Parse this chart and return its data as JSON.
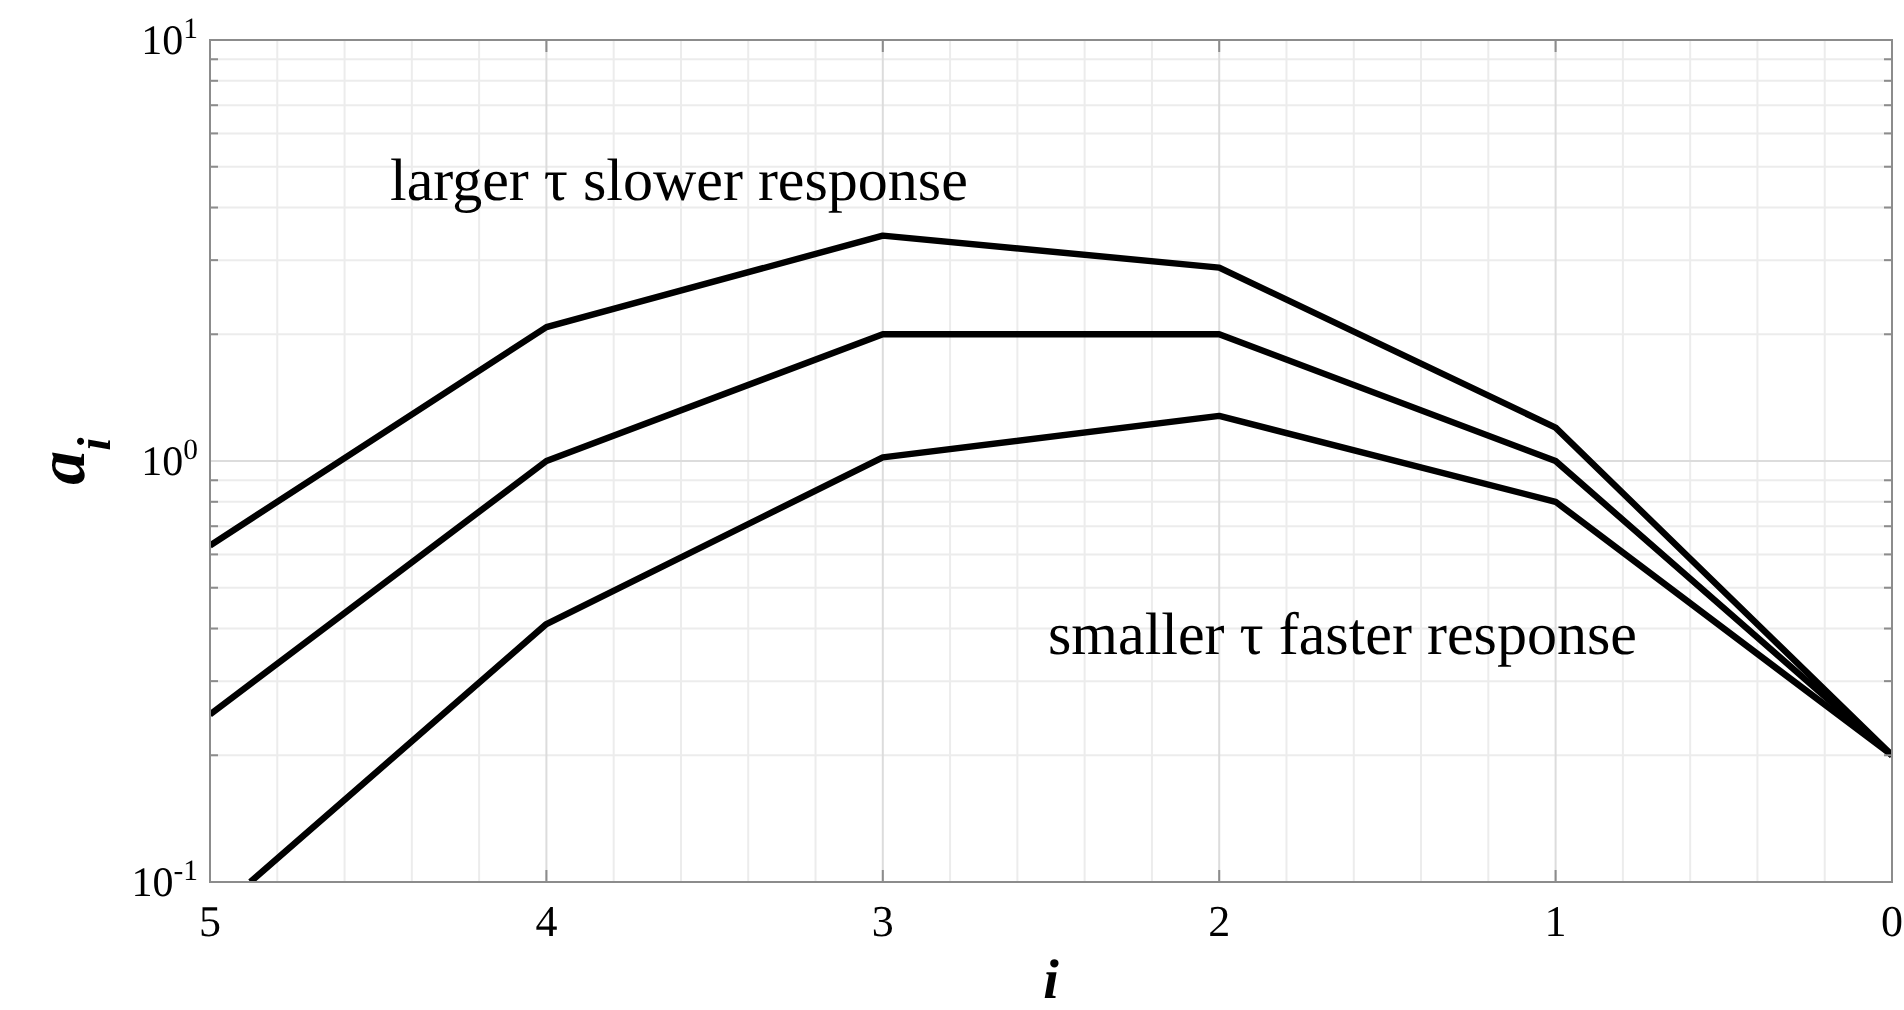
{
  "chart_data": {
    "type": "line",
    "xlabel": "i",
    "ylabel": "a$_{i}$",
    "log": "y",
    "grid": true,
    "line_style": "solid",
    "xlim": [
      5,
      0
    ],
    "xticks": [
      5,
      4,
      3,
      2,
      1,
      0
    ],
    "ylim": [
      0.1,
      10
    ],
    "yticks": [
      {
        "value": 0.1,
        "label": "10$^{-1}$"
      },
      {
        "value": 1,
        "label": "10$^{0}$"
      },
      {
        "value": 10,
        "label": "10$^{1}$"
      }
    ],
    "annotations": [
      "larger τ slower response",
      "smaller τ faster response"
    ],
    "series": [
      {
        "color": "#000000",
        "x": [
          5,
          4,
          3,
          2,
          1,
          0
        ],
        "values": [
          0.63,
          2.08,
          3.43,
          2.88,
          1.2,
          0.2
        ]
      },
      {
        "color": "#000000",
        "x": [
          5,
          4,
          3,
          2,
          1,
          0
        ],
        "values": [
          0.25,
          1.0,
          2.0,
          2.0,
          1.0,
          0.2
        ]
      },
      {
        "color": "#000000",
        "x": [
          4.88,
          4,
          3,
          2,
          1,
          0
        ],
        "values": [
          0.1,
          0.41,
          1.02,
          1.28,
          0.8,
          0.2
        ]
      }
    ]
  }
}
